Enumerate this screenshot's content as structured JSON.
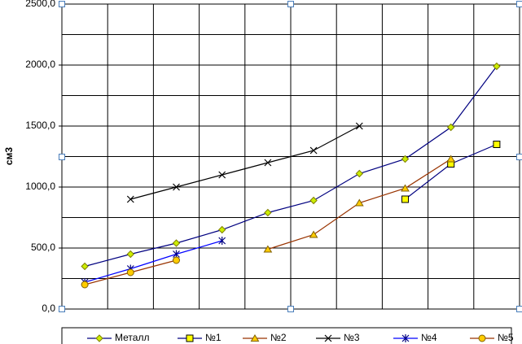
{
  "chart_data": {
    "type": "line",
    "y_label": "см3",
    "categories": [
      null,
      null,
      null,
      null,
      null,
      null,
      null,
      null,
      null,
      null
    ],
    "ylim": [
      0,
      2500
    ],
    "yticks": [
      {
        "value": 0,
        "label": "0,0"
      },
      {
        "value": 500,
        "label": "500,0"
      },
      {
        "value": 1000,
        "label": "1000,0"
      },
      {
        "value": 1500,
        "label": "1500,0"
      },
      {
        "value": 2000,
        "label": "2000,0"
      },
      {
        "value": 2500,
        "label": "2500,0"
      }
    ],
    "minor_yticks": [
      250,
      750,
      1250,
      1750,
      2250
    ],
    "grid": true,
    "legend": "bottom",
    "series": [
      {
        "name": "Металл",
        "color": "#000080",
        "marker": "diamond",
        "marker_color": "#ccee00",
        "values": [
          350,
          450,
          540,
          650,
          790,
          890,
          1110,
          1230,
          1490,
          1990
        ]
      },
      {
        "name": "№1",
        "color": "#000080",
        "marker": "square",
        "marker_color": "#ffff00",
        "values": [
          null,
          null,
          null,
          null,
          null,
          null,
          null,
          900,
          1190,
          1350
        ]
      },
      {
        "name": "№2",
        "color": "#993300",
        "marker": "triangle",
        "marker_color": "#ffcc00",
        "values": [
          null,
          null,
          null,
          null,
          490,
          610,
          870,
          990,
          1230,
          null
        ]
      },
      {
        "name": "№3",
        "color": "#000000",
        "marker": "x",
        "marker_color": "#000000",
        "values": [
          null,
          900,
          1000,
          1100,
          1200,
          1300,
          1500,
          null,
          null,
          null
        ]
      },
      {
        "name": "№4",
        "color": "#0000ff",
        "marker": "asterisk",
        "marker_color": "#000080",
        "values": [
          220,
          330,
          450,
          560,
          null,
          null,
          null,
          null,
          null,
          null
        ]
      },
      {
        "name": "№5",
        "color": "#993300",
        "marker": "circle",
        "marker_color": "#ffcc00",
        "values": [
          200,
          300,
          400,
          null,
          null,
          null,
          null,
          null,
          null,
          null
        ]
      }
    ]
  }
}
